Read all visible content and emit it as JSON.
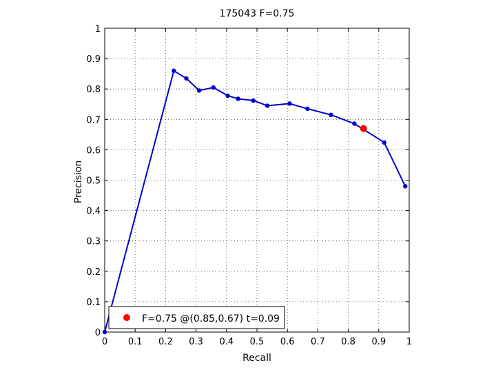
{
  "chart_data": {
    "type": "line",
    "title": "175043 F=0.75",
    "xlabel": "Recall",
    "ylabel": "Precision",
    "xlim": [
      0,
      1
    ],
    "ylim": [
      0,
      1
    ],
    "xticks": [
      "0",
      "0.1",
      "0.2",
      "0.3",
      "0.4",
      "0.5",
      "0.6",
      "0.7",
      "0.8",
      "0.9",
      "1"
    ],
    "yticks": [
      "0",
      "0.1",
      "0.2",
      "0.3",
      "0.4",
      "0.5",
      "0.6",
      "0.7",
      "0.8",
      "0.9",
      "1"
    ],
    "grid": true,
    "legend_position": "bottom-left",
    "series": [
      {
        "color": "#0000cc",
        "x": [
          0.0,
          0.227,
          0.268,
          0.31,
          0.357,
          0.404,
          0.438,
          0.488,
          0.534,
          0.607,
          0.666,
          0.743,
          0.82,
          0.918,
          0.987
        ],
        "y": [
          0.0,
          0.86,
          0.835,
          0.795,
          0.805,
          0.778,
          0.768,
          0.762,
          0.745,
          0.752,
          0.735,
          0.715,
          0.686,
          0.624,
          0.48
        ]
      }
    ],
    "best_point": {
      "x": 0.85,
      "y": 0.67,
      "color": "#ff0000",
      "legend": "F=0.75 @(0.85,0.67) t=0.09"
    }
  }
}
